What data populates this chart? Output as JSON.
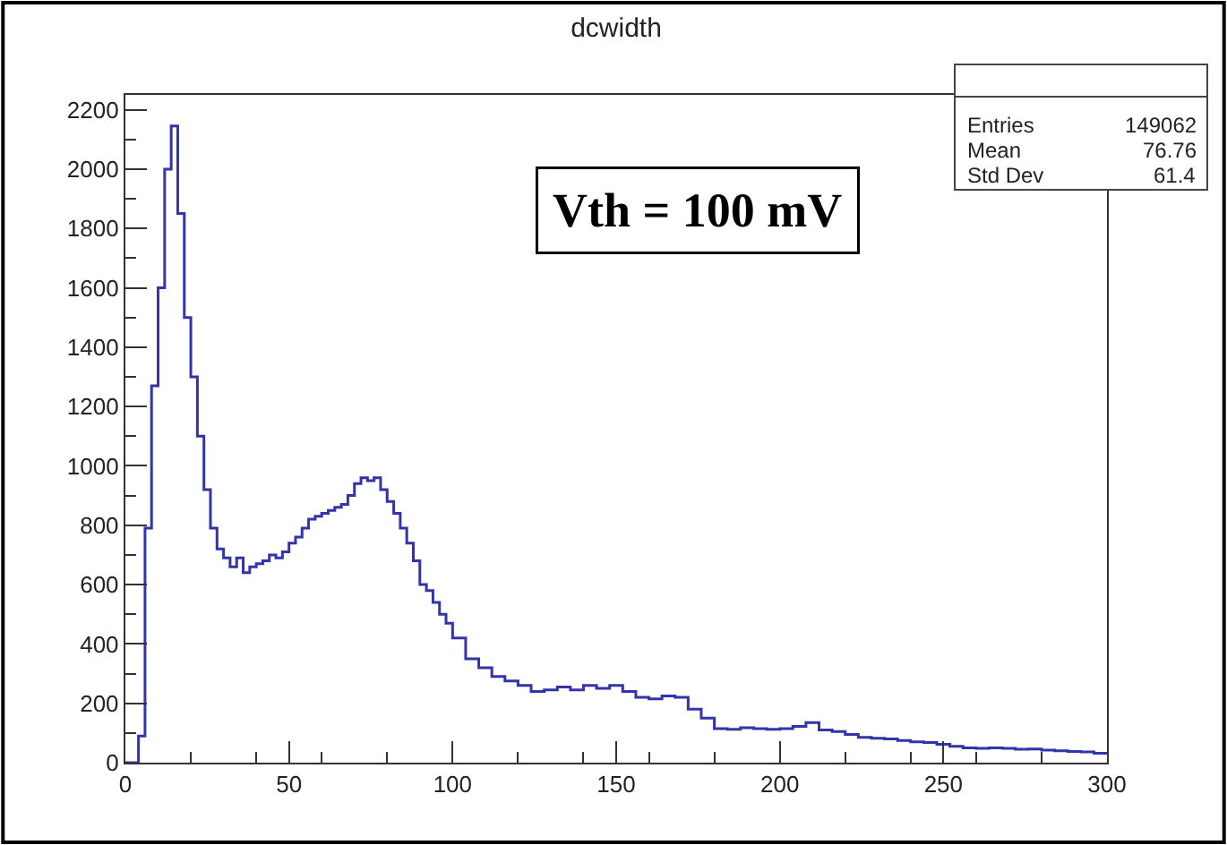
{
  "chart_data": {
    "type": "histogram",
    "title": "dcwidth",
    "bins": [
      0,
      2,
      4,
      6,
      8,
      10,
      12,
      14,
      16,
      18,
      20,
      22,
      24,
      26,
      28,
      30,
      32,
      34,
      36,
      38,
      40,
      42,
      44,
      46,
      48,
      50,
      52,
      54,
      56,
      58,
      60,
      62,
      64,
      66,
      68,
      70,
      72,
      74,
      76,
      78,
      80,
      82,
      84,
      86,
      88,
      90,
      92,
      94,
      96,
      98,
      100,
      104,
      108,
      112,
      116,
      120,
      124,
      128,
      132,
      136,
      140,
      144,
      148,
      152,
      156,
      160,
      164,
      168,
      172,
      176,
      180,
      184,
      188,
      192,
      196,
      200,
      204,
      208,
      212,
      216,
      220,
      224,
      228,
      232,
      236,
      240,
      244,
      248,
      252,
      256,
      260,
      264,
      268,
      272,
      276,
      280,
      284,
      288,
      292,
      296,
      300
    ],
    "values": [
      0,
      0,
      90,
      790,
      1270,
      1600,
      2000,
      2145,
      1850,
      1500,
      1300,
      1100,
      920,
      790,
      720,
      690,
      660,
      690,
      640,
      660,
      670,
      680,
      700,
      690,
      710,
      740,
      760,
      790,
      820,
      830,
      840,
      850,
      860,
      870,
      900,
      940,
      960,
      950,
      960,
      920,
      880,
      840,
      790,
      740,
      680,
      600,
      580,
      540,
      500,
      470,
      420,
      350,
      320,
      290,
      275,
      260,
      240,
      245,
      255,
      245,
      260,
      250,
      260,
      240,
      220,
      215,
      225,
      220,
      180,
      150,
      115,
      112,
      118,
      115,
      112,
      115,
      122,
      135,
      110,
      105,
      95,
      85,
      82,
      80,
      75,
      70,
      68,
      62,
      55,
      50,
      48,
      50,
      48,
      45,
      46,
      42,
      40,
      38,
      36,
      32
    ],
    "color": "#3333aa",
    "xlim": [
      0,
      300
    ],
    "xticks": [
      0,
      50,
      100,
      150,
      200,
      250,
      300
    ],
    "ylim": [
      0,
      2250
    ],
    "yticks": [
      0,
      200,
      400,
      600,
      800,
      1000,
      1200,
      1400,
      1600,
      1800,
      2000,
      2200
    ],
    "annotations": [
      "Vth = 100 mV",
      "Entries",
      "149062",
      "Mean",
      "76.76",
      "Std Dev",
      "61.4"
    ]
  }
}
